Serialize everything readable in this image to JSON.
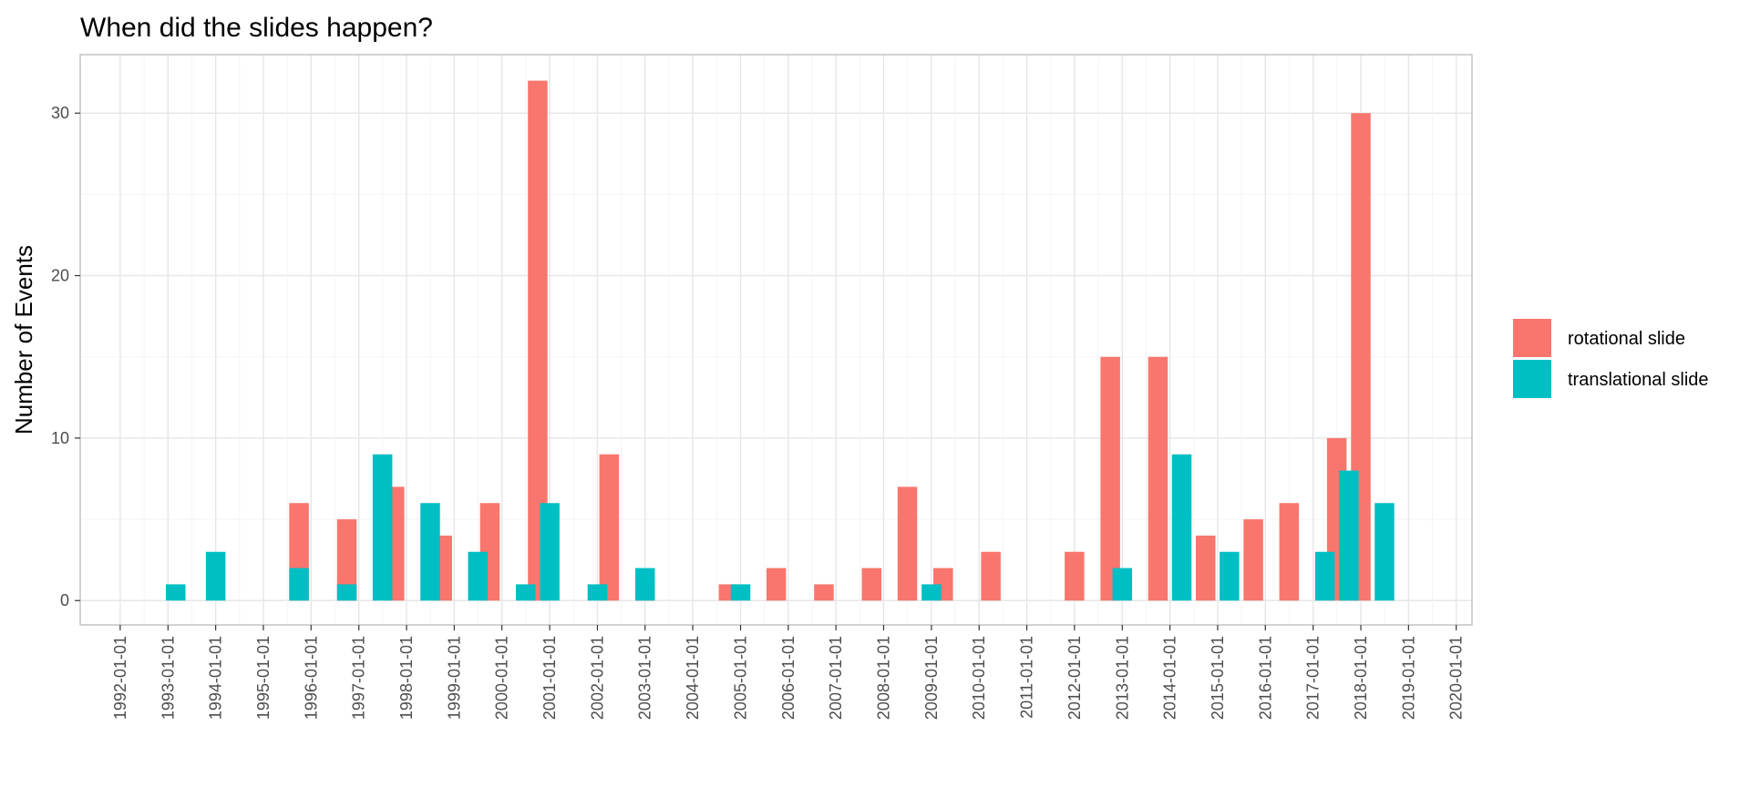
{
  "chart_data": {
    "type": "bar",
    "title": "When did the slides happen?",
    "xlabel": "",
    "ylabel": "Number of Events",
    "x_ticks": [
      "1992-01-01",
      "1993-01-01",
      "1994-01-01",
      "1995-01-01",
      "1996-01-01",
      "1997-01-01",
      "1998-01-01",
      "1999-01-01",
      "2000-01-01",
      "2001-01-01",
      "2002-01-01",
      "2003-01-01",
      "2004-01-01",
      "2005-01-01",
      "2006-01-01",
      "2007-01-01",
      "2008-01-01",
      "2009-01-01",
      "2010-01-01",
      "2011-01-01",
      "2012-01-01",
      "2013-01-01",
      "2014-01-01",
      "2015-01-01",
      "2016-01-01",
      "2017-01-01",
      "2018-01-01",
      "2019-01-01",
      "2020-01-01"
    ],
    "y_ticks": [
      0,
      10,
      20,
      30
    ],
    "ylim": [
      -1.5,
      33.6
    ],
    "xlim": [
      "1991-03-01",
      "2020-05-01"
    ],
    "grid": true,
    "legend_position": "right",
    "bar_width_days": 150,
    "series": [
      {
        "name": "rotational slide",
        "color": "#F8766D",
        "points": [
          {
            "x": "1995-10-01",
            "y": 6
          },
          {
            "x": "1996-10-01",
            "y": 5
          },
          {
            "x": "1997-10-01",
            "y": 7
          },
          {
            "x": "1998-10-01",
            "y": 4
          },
          {
            "x": "1999-10-01",
            "y": 6
          },
          {
            "x": "2000-10-01",
            "y": 32
          },
          {
            "x": "2002-04-01",
            "y": 9
          },
          {
            "x": "2003-01-01",
            "y": 1
          },
          {
            "x": "2004-10-01",
            "y": 1
          },
          {
            "x": "2005-10-01",
            "y": 2
          },
          {
            "x": "2006-10-01",
            "y": 1
          },
          {
            "x": "2007-10-01",
            "y": 2
          },
          {
            "x": "2008-07-01",
            "y": 7
          },
          {
            "x": "2009-04-01",
            "y": 2
          },
          {
            "x": "2010-04-01",
            "y": 3
          },
          {
            "x": "2012-01-01",
            "y": 3
          },
          {
            "x": "2012-10-01",
            "y": 15
          },
          {
            "x": "2013-10-01",
            "y": 15
          },
          {
            "x": "2014-10-01",
            "y": 4
          },
          {
            "x": "2015-10-01",
            "y": 5
          },
          {
            "x": "2016-07-01",
            "y": 6
          },
          {
            "x": "2017-07-01",
            "y": 10
          },
          {
            "x": "2018-01-01",
            "y": 30
          }
        ]
      },
      {
        "name": "translational slide",
        "color": "#00BFC4",
        "points": [
          {
            "x": "1993-03-01",
            "y": 1
          },
          {
            "x": "1994-01-01",
            "y": 3
          },
          {
            "x": "1995-10-01",
            "y": 2
          },
          {
            "x": "1996-10-01",
            "y": 1
          },
          {
            "x": "1997-07-01",
            "y": 9
          },
          {
            "x": "1998-07-01",
            "y": 6
          },
          {
            "x": "1999-07-01",
            "y": 3
          },
          {
            "x": "2000-07-01",
            "y": 1
          },
          {
            "x": "2001-01-01",
            "y": 6
          },
          {
            "x": "2002-01-01",
            "y": 1
          },
          {
            "x": "2003-01-01",
            "y": 2
          },
          {
            "x": "2005-01-01",
            "y": 1
          },
          {
            "x": "2009-01-01",
            "y": 1
          },
          {
            "x": "2013-01-01",
            "y": 2
          },
          {
            "x": "2014-04-01",
            "y": 9
          },
          {
            "x": "2015-04-01",
            "y": 3
          },
          {
            "x": "2017-04-01",
            "y": 3
          },
          {
            "x": "2017-10-01",
            "y": 8
          },
          {
            "x": "2018-07-01",
            "y": 6
          }
        ]
      }
    ]
  }
}
